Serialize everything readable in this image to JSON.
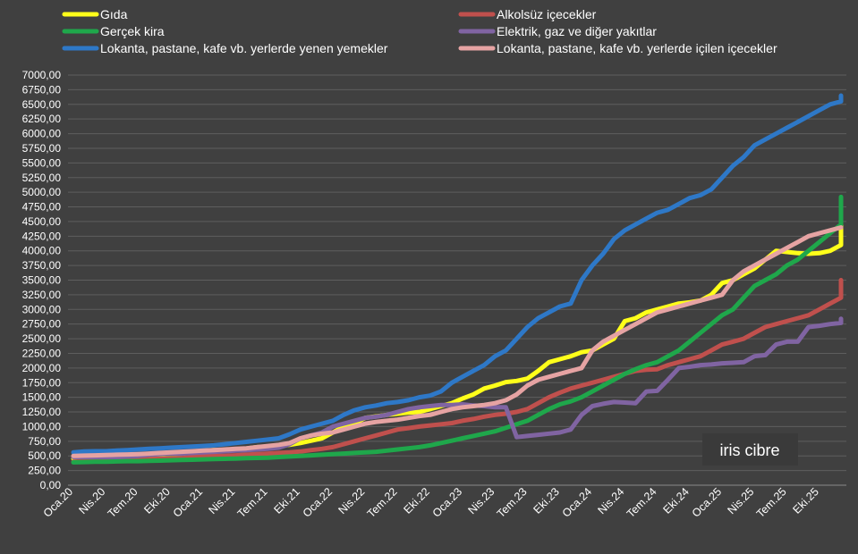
{
  "chart_data": {
    "type": "line",
    "title": "",
    "xlabel": "",
    "ylabel": "",
    "ylim": [
      0,
      7000
    ],
    "y_ticks": [
      "0,00",
      "250,00",
      "500,00",
      "750,00",
      "1000,00",
      "1250,00",
      "1500,00",
      "1750,00",
      "2000,00",
      "2250,00",
      "2500,00",
      "2750,00",
      "3000,00",
      "3250,00",
      "3500,00",
      "3750,00",
      "4000,00",
      "4250,00",
      "4500,00",
      "4750,00",
      "5000,00",
      "5250,00",
      "5500,00",
      "5750,00",
      "6000,00",
      "6250,00",
      "6500,00",
      "6750,00",
      "7000,00"
    ],
    "x_tick_labels": [
      "Oca.20",
      "Nis.20",
      "Tem.20",
      "Eki.20",
      "Oca.21",
      "Nis.21",
      "Tem.21",
      "Eki.21",
      "Oca.22",
      "Nis.22",
      "Tem.22",
      "Eki.22",
      "Oca.23",
      "Nis.23",
      "Tem.23",
      "Eki.23",
      "Oca.24",
      "Nis.24",
      "Tem.24",
      "Eki.24",
      "Oca.25",
      "Nis.25",
      "Tem.25",
      "Eki.25"
    ],
    "grid": true,
    "legend_position": "top",
    "series": [
      {
        "name": "Gıda",
        "color": "#ffff1a",
        "values": [
          455,
          470,
          470,
          475,
          480,
          500,
          500,
          510,
          520,
          535,
          540,
          560,
          585,
          600,
          600,
          610,
          625,
          650,
          660,
          670,
          690,
          720,
          760,
          800,
          900,
          1000,
          1050,
          1150,
          1175,
          1200,
          1220,
          1240,
          1250,
          1300,
          1350,
          1400,
          1480,
          1550,
          1650,
          1700,
          1760,
          1780,
          1820,
          1950,
          2100,
          2150,
          2200,
          2270,
          2300,
          2400,
          2500,
          2800,
          2850,
          2950,
          3000,
          3050,
          3100,
          3120,
          3150,
          3250,
          3450,
          3500,
          3600,
          3700,
          3850,
          4000,
          3980,
          3960,
          3950,
          3960,
          4000,
          4100,
          4300,
          4450,
          4400,
          4480
        ]
      },
      {
        "name": "Alkolsüz içecekler",
        "color": "#c0504d",
        "values": [
          400,
          410,
          410,
          420,
          420,
          430,
          440,
          445,
          450,
          455,
          460,
          480,
          490,
          500,
          500,
          510,
          520,
          530,
          540,
          550,
          560,
          575,
          600,
          620,
          650,
          700,
          750,
          800,
          850,
          900,
          950,
          975,
          1000,
          1020,
          1040,
          1060,
          1100,
          1130,
          1170,
          1200,
          1220,
          1250,
          1300,
          1400,
          1500,
          1580,
          1650,
          1700,
          1750,
          1800,
          1850,
          1900,
          1950,
          1970,
          1980,
          2050,
          2100,
          2150,
          2200,
          2300,
          2400,
          2450,
          2500,
          2600,
          2700,
          2750,
          2800,
          2850,
          2900,
          3000,
          3100,
          3200,
          3300,
          3380,
          3420,
          3500
        ]
      },
      {
        "name": "Gerçek kira",
        "color": "#1fa74b",
        "values": [
          390,
          395,
          400,
          400,
          405,
          410,
          410,
          415,
          420,
          425,
          430,
          435,
          440,
          445,
          450,
          455,
          460,
          465,
          470,
          480,
          490,
          500,
          510,
          520,
          530,
          540,
          550,
          560,
          570,
          590,
          610,
          630,
          650,
          680,
          720,
          760,
          800,
          840,
          880,
          920,
          980,
          1040,
          1100,
          1200,
          1300,
          1380,
          1430,
          1500,
          1600,
          1700,
          1800,
          1900,
          1980,
          2050,
          2100,
          2200,
          2300,
          2450,
          2600,
          2750,
          2900,
          3000,
          3200,
          3400,
          3500,
          3600,
          3750,
          3850,
          4000,
          4150,
          4300,
          4450,
          4600,
          4750,
          4850,
          4920
        ]
      },
      {
        "name": "Elektrik, gaz ve diğer yakıtlar",
        "color": "#8064a2",
        "values": [
          480,
          480,
          480,
          480,
          480,
          490,
          500,
          520,
          530,
          540,
          540,
          550,
          560,
          570,
          580,
          590,
          600,
          610,
          620,
          640,
          700,
          800,
          850,
          900,
          1000,
          1050,
          1100,
          1150,
          1170,
          1200,
          1250,
          1300,
          1330,
          1350,
          1370,
          1370,
          1380,
          1360,
          1350,
          1330,
          1330,
          820,
          840,
          860,
          880,
          900,
          950,
          1200,
          1350,
          1390,
          1420,
          1410,
          1400,
          1600,
          1610,
          1800,
          2000,
          2020,
          2050,
          2060,
          2080,
          2090,
          2100,
          2200,
          2220,
          2400,
          2450,
          2450,
          2700,
          2720,
          2750,
          2770,
          2790,
          2800,
          2820,
          2840
        ]
      },
      {
        "name": "Lokanta, pastane, kafe vb. yerlerde yenen yemekler",
        "color": "#2e78c7",
        "values": [
          560,
          575,
          580,
          580,
          590,
          600,
          610,
          620,
          630,
          640,
          650,
          660,
          670,
          680,
          700,
          720,
          740,
          760,
          780,
          800,
          870,
          950,
          1000,
          1050,
          1100,
          1200,
          1280,
          1330,
          1360,
          1400,
          1420,
          1450,
          1500,
          1530,
          1600,
          1750,
          1850,
          1950,
          2050,
          2200,
          2300,
          2500,
          2700,
          2850,
          2950,
          3050,
          3100,
          3500,
          3750,
          3950,
          4200,
          4350,
          4450,
          4550,
          4650,
          4700,
          4800,
          4900,
          4950,
          5050,
          5250,
          5450,
          5600,
          5800,
          5900,
          6000,
          6100,
          6200,
          6300,
          6400,
          6500,
          6550,
          6650
        ]
      },
      {
        "name": "Lokanta, pastane, kafe vb. yerlerde içilen içecekler",
        "color": "#e6a3a3",
        "values": [
          500,
          505,
          510,
          515,
          520,
          525,
          530,
          540,
          550,
          560,
          570,
          580,
          590,
          600,
          610,
          620,
          630,
          650,
          670,
          690,
          720,
          800,
          850,
          880,
          900,
          950,
          1000,
          1050,
          1080,
          1100,
          1120,
          1150,
          1180,
          1200,
          1250,
          1300,
          1330,
          1350,
          1370,
          1400,
          1450,
          1550,
          1700,
          1800,
          1850,
          1900,
          1950,
          2000,
          2300,
          2450,
          2550,
          2650,
          2750,
          2850,
          2950,
          3000,
          3050,
          3100,
          3150,
          3200,
          3250,
          3500,
          3650,
          3750,
          3850,
          3950,
          4050,
          4150,
          4250,
          4300,
          4350,
          4400
        ]
      }
    ]
  },
  "watermark": "iris cibre"
}
